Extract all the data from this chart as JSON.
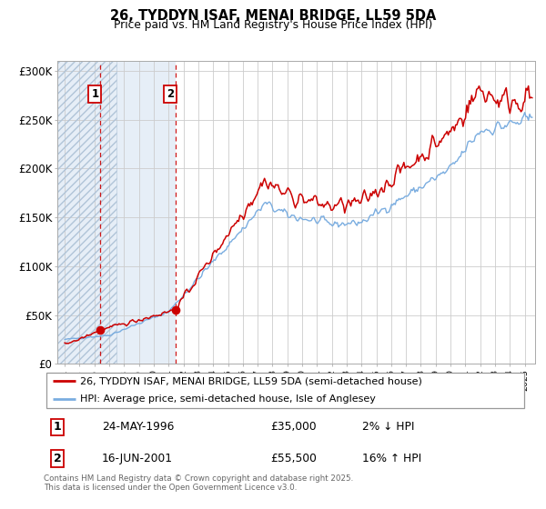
{
  "title1": "26, TYDDYN ISAF, MENAI BRIDGE, LL59 5DA",
  "title2": "Price paid vs. HM Land Registry's House Price Index (HPI)",
  "legend_line1": "26, TYDDYN ISAF, MENAI BRIDGE, LL59 5DA (semi-detached house)",
  "legend_line2": "HPI: Average price, semi-detached house, Isle of Anglesey",
  "transaction1_date": "24-MAY-1996",
  "transaction1_price": "£35,000",
  "transaction1_hpi": "2% ↓ HPI",
  "transaction1_year": 1996.39,
  "transaction1_value": 35000,
  "transaction2_date": "16-JUN-2001",
  "transaction2_price": "£55,500",
  "transaction2_hpi": "16% ↑ HPI",
  "transaction2_year": 2001.45,
  "transaction2_value": 55500,
  "property_color": "#cc0000",
  "hpi_color": "#7aade0",
  "vline_color": "#cc0000",
  "hatch_end_year": 2001.5,
  "hatch_start_year": 1993.5,
  "ylim": [
    0,
    310000
  ],
  "xlim_start": 1993.5,
  "xlim_end": 2025.7,
  "footer": "Contains HM Land Registry data © Crown copyright and database right 2025.\nThis data is licensed under the Open Government Licence v3.0.",
  "yticks": [
    0,
    50000,
    100000,
    150000,
    200000,
    250000,
    300000
  ],
  "ytick_labels": [
    "£0",
    "£50K",
    "£100K",
    "£150K",
    "£200K",
    "£250K",
    "£300K"
  ]
}
